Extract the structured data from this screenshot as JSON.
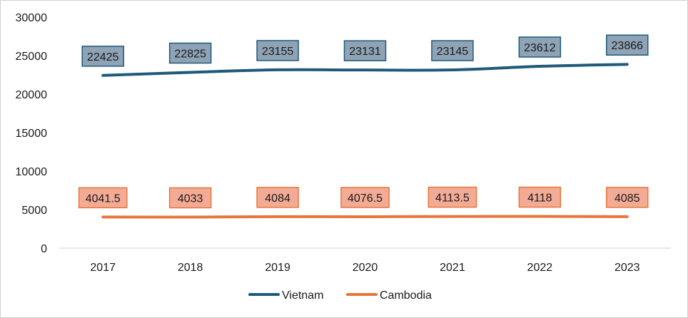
{
  "chart_data": {
    "type": "line",
    "title": "",
    "xlabel": "",
    "ylabel": "",
    "categories": [
      "2017",
      "2018",
      "2019",
      "2020",
      "2021",
      "2022",
      "2023"
    ],
    "ylim": [
      0,
      30000
    ],
    "yticks": [
      0,
      5000,
      10000,
      15000,
      20000,
      25000,
      30000
    ],
    "grid": false,
    "legend_position": "bottom",
    "series": [
      {
        "name": "Vietnam",
        "color": "#1f5a78",
        "label_fill": "#8fa3b6",
        "label_border": "#1f5a78",
        "values": [
          22425,
          22825,
          23155,
          23131,
          23145,
          23612,
          23866
        ],
        "labels": [
          "22425",
          "22825",
          "23155",
          "23131",
          "23145",
          "23612",
          "23866"
        ]
      },
      {
        "name": "Cambodia",
        "color": "#e6773a",
        "label_fill": "#f4ab95",
        "label_border": "#e6773a",
        "values": [
          4041.5,
          4033,
          4084,
          4076.5,
          4113.5,
          4118,
          4085
        ],
        "labels": [
          "4041.5",
          "4033",
          "4084",
          "4076.5",
          "4113.5",
          "4118",
          "4085"
        ]
      }
    ]
  }
}
